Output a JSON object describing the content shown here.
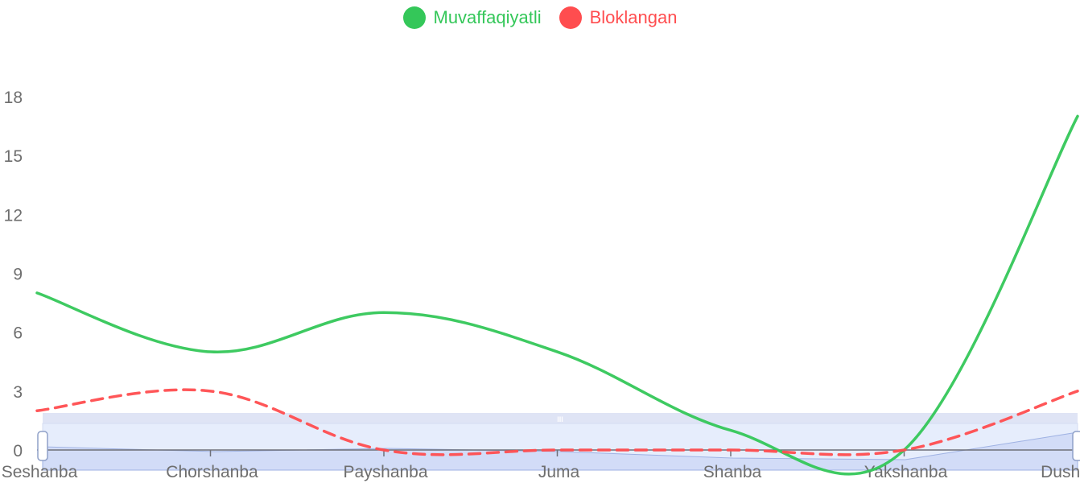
{
  "chart_data": {
    "type": "line",
    "categories": [
      "Seshanba",
      "Chorshanba",
      "Payshanba",
      "Juma",
      "Shanba",
      "Yakshanba",
      "Dushanba"
    ],
    "series": [
      {
        "name": "Muvaffaqiyatli",
        "values": [
          8,
          5,
          7,
          5,
          1,
          0,
          17
        ],
        "color": "#34c759",
        "style": "solid"
      },
      {
        "name": "Bloklangan",
        "values": [
          2,
          3,
          0,
          0,
          0,
          0,
          3
        ],
        "color": "#ff4d4f",
        "style": "dashed"
      }
    ],
    "ylim": [
      0,
      18
    ],
    "yticks": [
      "0",
      "3",
      "6",
      "9",
      "12",
      "15",
      "18"
    ],
    "grid": false,
    "legend_position": "top-center",
    "zoom_slider": true,
    "zoom_handle_label": "III"
  }
}
